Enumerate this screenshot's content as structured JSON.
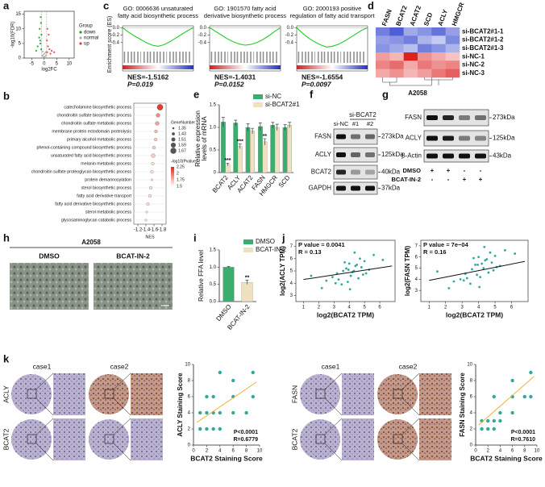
{
  "panels": {
    "letters": [
      "a",
      "b",
      "c",
      "d",
      "e",
      "f",
      "g",
      "h",
      "i",
      "j",
      "k"
    ],
    "blot_f": {
      "group_label": "si-BCAT2",
      "lanes": [
        "si-NC",
        "#1",
        "#2"
      ],
      "rows": [
        "FASN",
        "ACLY",
        "BCAT2",
        "GAPDH"
      ],
      "sizes": [
        "273kDa",
        "125kDa",
        "40kDa",
        "37kDa"
      ]
    },
    "blot_g": {
      "rows": [
        "FASN",
        "ACLY",
        "β-Actin"
      ],
      "sizes": [
        "273kDa",
        "125kDa",
        "43kDa"
      ],
      "treatments": [
        {
          "name": "DMSO",
          "signs": [
            "+",
            "+",
            "-",
            "-"
          ]
        },
        {
          "name": "BCAT-IN-2",
          "signs": [
            "-",
            "-",
            "+",
            "+"
          ]
        }
      ]
    },
    "h": {
      "cell_line": "A2058",
      "conditions": [
        "DMSO",
        "BCAT-IN-2"
      ]
    },
    "k": {
      "cases": [
        "case1",
        "case2"
      ],
      "left_rows": [
        "ACLY",
        "BCAT2"
      ],
      "right_rows": [
        "FASN",
        "BCAT2"
      ]
    }
  },
  "chart_data": [
    {
      "type": "scatter",
      "xlabel": "log2FC",
      "ylabel": "-log10(FDR)",
      "xlim": [
        -8,
        12
      ],
      "ylim": [
        0,
        16
      ],
      "xticks": [
        -5,
        0,
        5,
        10
      ],
      "yticks": [
        0,
        5,
        10,
        15
      ],
      "legend_title": "Group",
      "series": [
        {
          "name": "down",
          "color": "#1a9e3a",
          "x": [
            -1.2,
            -1.5,
            -2,
            -1.1,
            -2.6,
            -1.8,
            -1.3,
            -3.2,
            -1.6,
            -1.4
          ],
          "y": [
            3,
            5,
            7,
            8,
            4,
            10,
            12,
            2.5,
            6,
            14
          ]
        },
        {
          "name": "normal",
          "color": "#aaaaaa",
          "x": [
            -0.5,
            0.3,
            0.6,
            -0.8,
            0.1,
            -0.3,
            0.8,
            -0.6
          ],
          "y": [
            1,
            0.5,
            2,
            0.8,
            1.5,
            0.3,
            1,
            2.2
          ]
        },
        {
          "name": "up",
          "color": "#e04040",
          "x": [
            1.2,
            1.5,
            2.1,
            1.1,
            3,
            1.8,
            2.5,
            4,
            1.3
          ],
          "y": [
            2,
            4,
            3,
            6,
            2.5,
            8,
            1.5,
            2,
            10
          ]
        }
      ]
    },
    {
      "type": "line",
      "title": [
        "GO: 0006636 unsaturated",
        "fatty acid biosynthetic process"
      ],
      "ylabel": "Enrichment score (ES)",
      "ylim": [
        -0.6,
        0.05
      ],
      "yticks": [
        {
          "value": 0,
          "label": "0.0"
        },
        -0.2,
        -0.4
      ],
      "color": "#22cc22",
      "values": [
        0,
        -0.12,
        -0.22,
        -0.31,
        -0.4,
        -0.47,
        -0.5,
        -0.46,
        -0.38,
        -0.28,
        -0.18,
        -0.08,
        0
      ],
      "nes": "NES=-1.5162",
      "p": "P=0.019"
    },
    {
      "type": "line",
      "title": [
        "GO: 1901570 fatty acid",
        "derivative biosynthetic process"
      ],
      "ylim": [
        -0.6,
        0.05
      ],
      "yticks": [
        {
          "value": 0,
          "label": "0.0"
        },
        -0.2,
        -0.4
      ],
      "color": "#22cc22",
      "values": [
        0,
        -0.1,
        -0.2,
        -0.3,
        -0.38,
        -0.44,
        -0.47,
        -0.45,
        -0.4,
        -0.32,
        -0.22,
        -0.1,
        0
      ],
      "nes": "NES=-1.4031",
      "p": "P=0.0152"
    },
    {
      "type": "line",
      "title": [
        "GO: 2000193 positive",
        "regulation of fatty acid transport"
      ],
      "ylim": [
        -0.6,
        0.05
      ],
      "yticks": [
        {
          "value": 0,
          "label": "0.0"
        },
        -0.2,
        -0.4
      ],
      "color": "#22cc22",
      "values": [
        0,
        -0.15,
        -0.28,
        -0.38,
        -0.46,
        -0.52,
        -0.5,
        -0.45,
        -0.37,
        -0.27,
        -0.17,
        -0.07,
        0
      ],
      "nes": "NES=-1.6554",
      "p": "P=0.0097"
    },
    {
      "type": "heatmap",
      "columns": [
        "FASN",
        "BCAT2",
        "ACAT2",
        "SCD",
        "ACLY",
        "HMGCR"
      ],
      "rows": [
        "si-BCAT2#1-1",
        "si-BCAT2#1-2",
        "si-BCAT2#1-3",
        "si-NC-1",
        "si-NC-2",
        "si-NC-3"
      ],
      "values": [
        [
          -1.2,
          -1.5,
          -0.8,
          -1.0,
          -1.3,
          -0.9
        ],
        [
          -0.9,
          -1.0,
          -1.2,
          -0.7,
          -0.5,
          -1.1
        ],
        [
          -1.0,
          -0.8,
          -0.6,
          -1.2,
          -1.0,
          -0.7
        ],
        [
          0.8,
          0.6,
          1.8,
          0.9,
          0.7,
          0.5
        ],
        [
          1.0,
          1.2,
          0.7,
          1.1,
          0.9,
          1.0
        ],
        [
          0.7,
          0.9,
          0.6,
          0.8,
          1.1,
          1.3
        ]
      ],
      "zlim": [
        -1.8,
        1.8
      ],
      "colors": [
        "#2b3fcc",
        "#ffffff",
        "#dd2222"
      ],
      "subtitle": "A2058"
    },
    {
      "type": "dot",
      "categories": [
        "catecholamine biosynthetic process",
        "chondroitin sulfate biosynthetic process",
        "chondroitin sulfate metabolic process",
        "membrane protein ectodomain proteolysis",
        "primary alcohol metabolic process",
        "phenol-containing compound biosynthetic process",
        "unsaturated fatty acid biosynthetic process",
        "melanin metabolic process",
        "chondroitin sulfate proteoglycan biosynthetic process",
        "protein demannosylation",
        "sterol biosynthetic process",
        "fatty acid derivative transport",
        "fatty acid derivative biosynthetic process",
        "sterol metabolic process",
        "glycosaminoglycan catabolic process"
      ],
      "x": [
        -1.75,
        -1.7,
        -1.68,
        -1.65,
        -1.64,
        -1.6,
        -1.58,
        -1.57,
        -1.55,
        -1.55,
        -1.52,
        -1.5,
        -1.45,
        -1.42,
        -1.4
      ],
      "sizes": [
        1.67,
        1.5,
        1.5,
        1.43,
        1.43,
        1.43,
        1.5,
        1.43,
        1.43,
        1.35,
        1.43,
        1.43,
        1.43,
        1.35,
        1.35
      ],
      "color_values": [
        2.3,
        1.9,
        1.8,
        1.7,
        1.6,
        1.6,
        1.6,
        1.5,
        1.5,
        1.5,
        1.5,
        1.5,
        1.5,
        1.5,
        1.5
      ],
      "xlim": [
        -1.1,
        -1.9
      ],
      "xticks": [
        -1.2,
        -1.4,
        -1.6,
        -1.8
      ],
      "xlabel": "NES",
      "size_legend_title": "GeneNumber",
      "size_ticks": [
        1.35,
        1.43,
        1.51,
        1.59,
        1.67
      ],
      "color_legend_title": "-log10(Pvalue)",
      "color_ticks": [
        2.25,
        2,
        1.75,
        1.5
      ],
      "clim": [
        1.4,
        2.35
      ],
      "colors": [
        "#fff4f0",
        "#e03020"
      ]
    },
    {
      "type": "bar",
      "categories": [
        "BCAT2",
        "ACLY",
        "ACAT2",
        "FASN",
        "HMGCR",
        "SCD"
      ],
      "ylabel": [
        "Relative expression",
        "levels of mRNA"
      ],
      "ylim": [
        0,
        1.5
      ],
      "yticks": [
        0,
        0.5,
        {
          "value": 1,
          "label": "1.0"
        },
        1.5
      ],
      "series": [
        {
          "name": "si-NC",
          "color": "#3aae6e",
          "values": [
            1.12,
            1.1,
            1.0,
            1.02,
            1.05,
            1.0
          ],
          "errors": [
            0.1,
            0.06,
            0.08,
            0.08,
            0.06,
            0.06
          ]
        },
        {
          "name": "si-BCAT2#1",
          "color": "#efe0c0",
          "values": [
            0.18,
            0.58,
            0.92,
            0.68,
            1.0,
            1.05
          ],
          "errors": [
            0.03,
            0.05,
            0.06,
            0.07,
            0.07,
            0.06
          ]
        }
      ],
      "significance": [
        "***",
        "***",
        null,
        "**",
        null,
        null
      ]
    },
    {
      "type": "bar",
      "categories": [
        "DMSO",
        "BCAT-IN-2"
      ],
      "values": [
        1.0,
        0.56
      ],
      "errors": [
        0.02,
        0.06
      ],
      "colors": [
        "#3aae6e",
        "#efe0c0"
      ],
      "significance": [
        null,
        "**"
      ],
      "ylabel": [
        "Relative FFA level"
      ],
      "ylim": [
        0,
        1.5
      ],
      "yticks": [
        {
          "value": 0,
          "label": "0.0"
        },
        0.5,
        {
          "value": 1,
          "label": "1.0"
        },
        1.5
      ]
    },
    {
      "type": "scatter",
      "xlabel": "log2(BCAT2 TPM)",
      "ylabel": "log2(ACLY TPM)",
      "annotations": [
        "P value = 0.0041",
        "R = 0.13"
      ],
      "xlim": [
        0.5,
        7
      ],
      "ylim": [
        2.5,
        7.5
      ],
      "xticks": [
        1,
        2,
        3,
        4,
        5,
        6
      ],
      "yticks": [
        3,
        4,
        5,
        6,
        7
      ],
      "color": "#1aa090",
      "x": [
        3.2,
        3.8,
        4.1,
        4.5,
        2.5,
        5.0,
        3.9,
        4.3,
        4.8,
        3.5,
        2.9,
        5.3,
        4.0,
        4.6,
        3.6,
        4.2,
        5.6,
        3.1,
        4.4,
        4.9,
        2.2,
        3.7,
        4.7,
        5.1,
        3.3,
        4.05,
        6.2,
        1.5,
        4.35,
        3.95
      ],
      "y": [
        4.8,
        5.2,
        4.6,
        5.5,
        4.2,
        5.8,
        4.1,
        5.0,
        5.3,
        3.9,
        4.5,
        5.1,
        5.6,
        4.4,
        5.0,
        4.9,
        6.3,
        4.0,
        5.4,
        4.7,
        3.6,
        5.7,
        6.0,
        4.8,
        4.3,
        3.5,
        5.9,
        4.6,
        6.5,
        5.1
      ],
      "trend": {
        "x": [
          1,
          6.8
        ],
        "y": [
          4.3,
          5.4
        ]
      },
      "trend_color": "#111111"
    },
    {
      "type": "scatter",
      "xlabel": "log2(BCAT2 TPM)",
      "ylabel": "log2(FASN TPM)",
      "annotations": [
        "P value = 7e−04",
        "R = 0.16"
      ],
      "xlim": [
        0.5,
        7
      ],
      "ylim": [
        2,
        7.5
      ],
      "xticks": [
        1,
        2,
        3,
        4,
        5,
        6
      ],
      "yticks": [
        3,
        4,
        5,
        6,
        7
      ],
      "color": "#1aa090",
      "x": [
        3.2,
        3.8,
        4.1,
        4.5,
        2.5,
        5.0,
        3.9,
        4.3,
        4.8,
        3.5,
        2.9,
        5.3,
        4.0,
        4.6,
        3.6,
        4.2,
        5.6,
        3.1,
        4.4,
        4.9,
        2.2,
        3.7,
        4.7,
        5.1,
        3.3,
        4.05,
        6.2,
        1.5,
        4.35,
        3.95
      ],
      "y": [
        4.5,
        5.3,
        4.2,
        5.8,
        3.8,
        6.1,
        4.4,
        5.0,
        5.5,
        3.6,
        4.0,
        5.2,
        6.0,
        4.6,
        4.9,
        5.4,
        6.6,
        3.9,
        5.7,
        4.8,
        3.2,
        5.9,
        6.4,
        5.1,
        4.1,
        3.3,
        6.3,
        4.7,
        6.9,
        5.3
      ],
      "trend": {
        "x": [
          1,
          6.8
        ],
        "y": [
          3.9,
          5.6
        ]
      },
      "trend_color": "#111111"
    },
    {
      "type": "scatter",
      "xlabel": "BCAT2 Staining Score",
      "ylabel": "ACLY Staining Score",
      "annotations": [
        "P<0.0001",
        "R=0.6779"
      ],
      "xlim": [
        0,
        10
      ],
      "ylim": [
        0,
        10
      ],
      "xticks": [
        0,
        2,
        4,
        6,
        8,
        10
      ],
      "yticks": [
        0,
        2,
        4,
        6,
        8,
        10
      ],
      "color": "#1aa090",
      "x": [
        1,
        2,
        3,
        4,
        2,
        3,
        4,
        6,
        6,
        9,
        3,
        6,
        2,
        4,
        9,
        1,
        8
      ],
      "y": [
        4,
        4,
        4,
        4,
        2,
        2,
        2,
        6,
        4,
        6,
        6,
        8,
        6,
        9,
        9,
        2,
        4
      ],
      "trend": {
        "x": [
          0.5,
          9.5
        ],
        "y": [
          2.8,
          7.8
        ]
      },
      "trend_color": "#f0b030"
    },
    {
      "type": "scatter",
      "xlabel": "BCAT2 Staining Score",
      "ylabel": "FASN Staining Score",
      "annotations": [
        "P<0.0001",
        "R=0.7610"
      ],
      "xlim": [
        0,
        10
      ],
      "ylim": [
        0,
        10
      ],
      "xticks": [
        0,
        2,
        4,
        6,
        8,
        10
      ],
      "yticks": [
        0,
        2,
        4,
        6,
        8,
        10
      ],
      "color": "#1aa090",
      "x": [
        1,
        2,
        3,
        4,
        2,
        3,
        4,
        6,
        6,
        9,
        1,
        3,
        6,
        8,
        9
      ],
      "y": [
        3,
        3,
        3,
        3,
        2,
        2,
        4,
        4,
        6,
        6,
        2,
        6,
        8,
        6,
        9
      ],
      "trend": {
        "x": [
          0.5,
          9.5
        ],
        "y": [
          2.5,
          8.5
        ]
      },
      "trend_color": "#f0b030"
    }
  ]
}
